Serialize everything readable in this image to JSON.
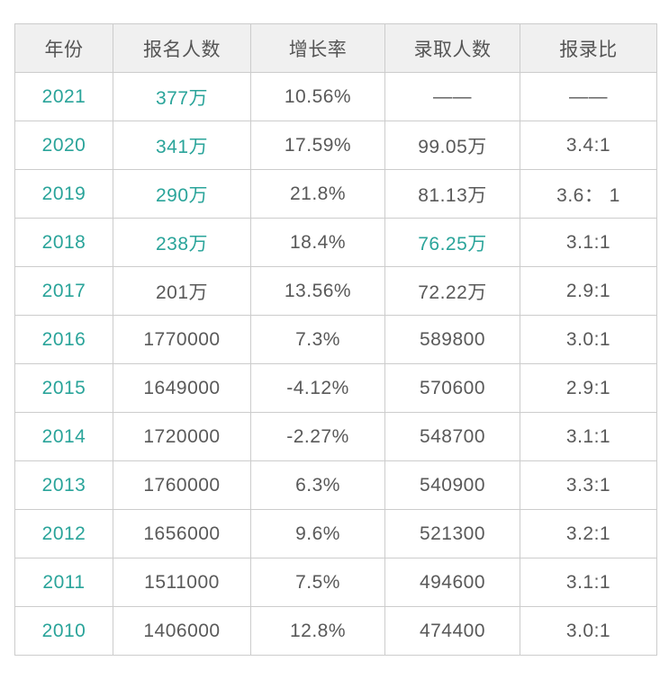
{
  "colors": {
    "accent": "#2aa49a",
    "text": "#595959",
    "header_text": "#555555",
    "header_bg": "#f0f0f0",
    "border": "#cccccc",
    "page_bg": "#ffffff"
  },
  "table": {
    "columns": [
      {
        "key": "year",
        "label": "年份"
      },
      {
        "key": "applicants",
        "label": "报名人数"
      },
      {
        "key": "growth",
        "label": "增长率"
      },
      {
        "key": "admitted",
        "label": "录取人数"
      },
      {
        "key": "ratio",
        "label": "报录比"
      }
    ],
    "rows": [
      {
        "year": "2021",
        "applicants": "377万",
        "growth": "10.56%",
        "admitted": "——",
        "ratio": "——",
        "accent_cells": [
          "year",
          "applicants"
        ]
      },
      {
        "year": "2020",
        "applicants": "341万",
        "growth": "17.59%",
        "admitted": "99.05万",
        "ratio": "3.4:1",
        "accent_cells": [
          "year",
          "applicants"
        ]
      },
      {
        "year": "2019",
        "applicants": "290万",
        "growth": "21.8%",
        "admitted": "81.13万",
        "ratio": "3.6： 1",
        "accent_cells": [
          "year",
          "applicants"
        ]
      },
      {
        "year": "2018",
        "applicants": "238万",
        "growth": "18.4%",
        "admitted": "76.25万",
        "ratio": "3.1:1",
        "accent_cells": [
          "year",
          "applicants",
          "admitted"
        ]
      },
      {
        "year": "2017",
        "applicants": "201万",
        "growth": "13.56%",
        "admitted": "72.22万",
        "ratio": "2.9:1",
        "accent_cells": [
          "year"
        ]
      },
      {
        "year": "2016",
        "applicants": "1770000",
        "growth": "7.3%",
        "admitted": "589800",
        "ratio": "3.0:1",
        "accent_cells": [
          "year"
        ]
      },
      {
        "year": "2015",
        "applicants": "1649000",
        "growth": "-4.12%",
        "admitted": "570600",
        "ratio": "2.9:1",
        "accent_cells": [
          "year"
        ]
      },
      {
        "year": "2014",
        "applicants": "1720000",
        "growth": "-2.27%",
        "admitted": "548700",
        "ratio": "3.1:1",
        "accent_cells": [
          "year"
        ]
      },
      {
        "year": "2013",
        "applicants": "1760000",
        "growth": "6.3%",
        "admitted": "540900",
        "ratio": "3.3:1",
        "accent_cells": [
          "year"
        ]
      },
      {
        "year": "2012",
        "applicants": "1656000",
        "growth": "9.6%",
        "admitted": "521300",
        "ratio": "3.2:1",
        "accent_cells": [
          "year"
        ]
      },
      {
        "year": "2011",
        "applicants": "1511000",
        "growth": "7.5%",
        "admitted": "494600",
        "ratio": "3.1:1",
        "accent_cells": [
          "year"
        ]
      },
      {
        "year": "2010",
        "applicants": "1406000",
        "growth": "12.8%",
        "admitted": "474400",
        "ratio": "3.0:1",
        "accent_cells": [
          "year"
        ]
      }
    ]
  },
  "chart_data": {
    "type": "table",
    "title": "",
    "columns": [
      "年份",
      "报名人数",
      "增长率",
      "录取人数",
      "报录比"
    ],
    "rows": [
      [
        "2021",
        "377万",
        "10.56%",
        "——",
        "——"
      ],
      [
        "2020",
        "341万",
        "17.59%",
        "99.05万",
        "3.4:1"
      ],
      [
        "2019",
        "290万",
        "21.8%",
        "81.13万",
        "3.6： 1"
      ],
      [
        "2018",
        "238万",
        "18.4%",
        "76.25万",
        "3.1:1"
      ],
      [
        "2017",
        "201万",
        "13.56%",
        "72.22万",
        "2.9:1"
      ],
      [
        "2016",
        "1770000",
        "7.3%",
        "589800",
        "3.0:1"
      ],
      [
        "2015",
        "1649000",
        "-4.12%",
        "570600",
        "2.9:1"
      ],
      [
        "2014",
        "1720000",
        "-2.27%",
        "548700",
        "3.1:1"
      ],
      [
        "2013",
        "1760000",
        "6.3%",
        "540900",
        "3.3:1"
      ],
      [
        "2012",
        "1656000",
        "9.6%",
        "521300",
        "3.2:1"
      ],
      [
        "2011",
        "1511000",
        "7.5%",
        "494600",
        "3.1:1"
      ],
      [
        "2010",
        "1406000",
        "12.8%",
        "474400",
        "3.0:1"
      ]
    ]
  }
}
